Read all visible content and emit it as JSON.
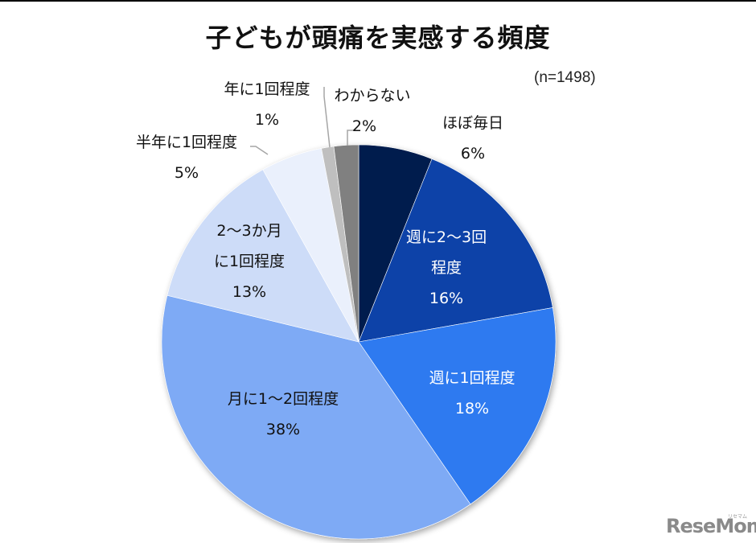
{
  "header": {
    "title": "子どもが頭痛を実感する頻度",
    "sample_size": "(n=1498)"
  },
  "watermark": {
    "logo": "ReseMom",
    "logo_sub": "リセマム"
  },
  "labels": {
    "daily": {
      "line1": "ほぼ毎日",
      "line2": "6%"
    },
    "weekly_2_3": {
      "line1": "週に2〜3回",
      "line2": "程度",
      "line3": "16%"
    },
    "weekly_1": {
      "line1": "週に1回程度",
      "line2": "18%"
    },
    "monthly_1_2": {
      "line1": "月に1〜2回程度",
      "line2": "38%"
    },
    "bimonthly": {
      "line1": "2〜3か月",
      "line2": "に1回程度",
      "line3": "13%"
    },
    "half_year": {
      "line1": "半年に1回程度",
      "line2": "5%"
    },
    "yearly": {
      "line1": "年に1回程度",
      "line2": "1%"
    },
    "unknown": {
      "line1": "わからない",
      "line2": "2%"
    }
  },
  "chart_data": {
    "type": "pie",
    "title": "子どもが頭痛を実感する頻度",
    "annotation": "(n=1498)",
    "start_angle": "12 o'clock, clockwise",
    "categories": [
      "ほぼ毎日",
      "週に2〜3回程度",
      "週に1回程度",
      "月に1〜2回程度",
      "2〜3か月に1回程度",
      "半年に1回程度",
      "年に1回程度",
      "わからない"
    ],
    "values": [
      6,
      16,
      18,
      38,
      13,
      5,
      1,
      2
    ],
    "unit": "%",
    "colors": [
      "#001a4d",
      "#0a43a8",
      "#2e7af0",
      "#7eaaf5",
      "#cddcf8",
      "#eaf0fc",
      "#bfbfbf",
      "#808080"
    ],
    "legend": "none (data labels on/around slices)"
  }
}
